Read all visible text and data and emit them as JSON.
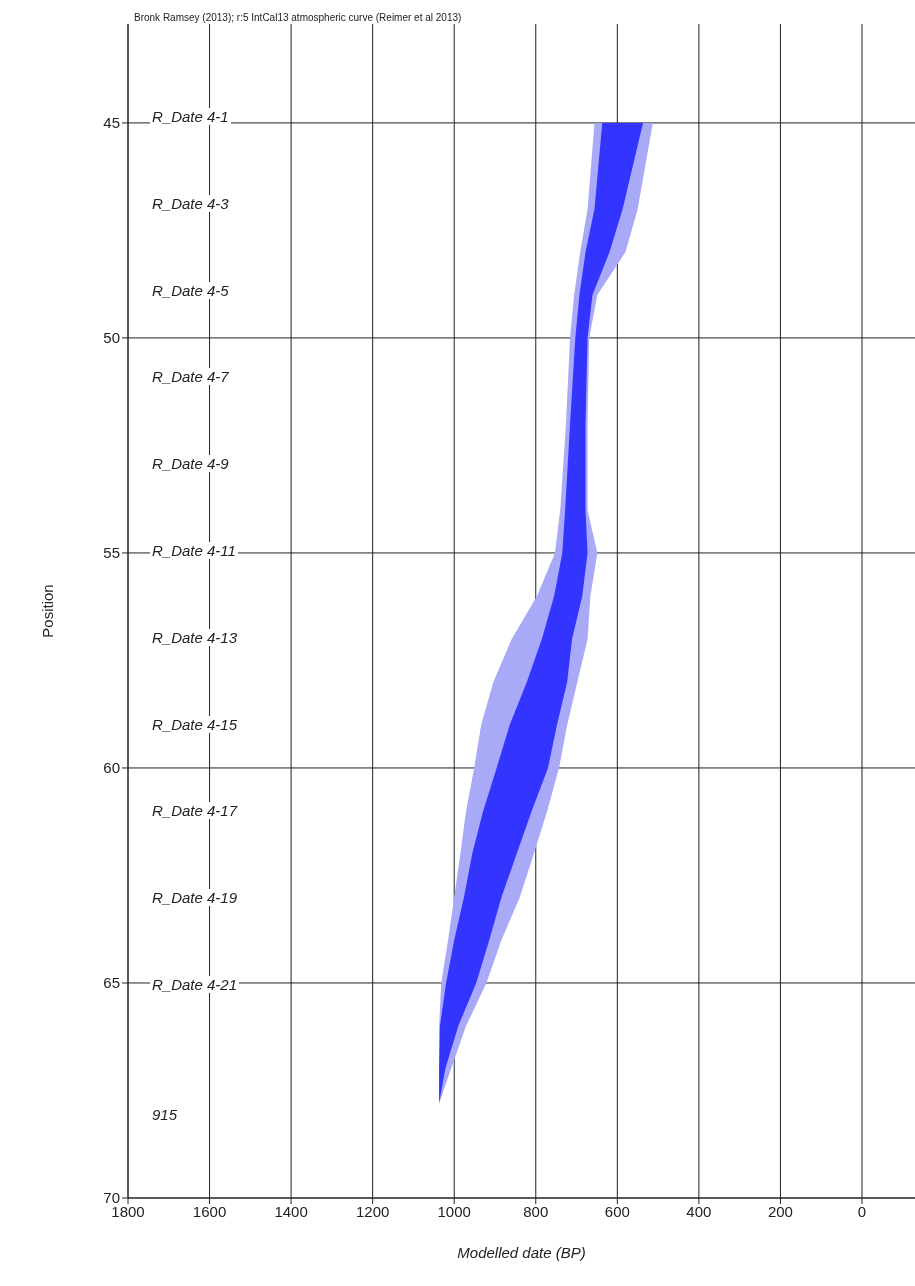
{
  "chart_data": {
    "type": "area",
    "orientation": "horizontal",
    "title": "Bronk Ramsey (2013); r:5 IntCal13 atmospheric curve (Reimer et al 2013)",
    "xlabel": "Modelled date (BP)",
    "ylabel": "Position",
    "xlim": [
      1800,
      -130
    ],
    "xticks": [
      1800,
      1600,
      1400,
      1200,
      1000,
      800,
      600,
      400,
      200,
      0
    ],
    "ylim": [
      70,
      42.7
    ],
    "yticks": [
      45,
      50,
      55,
      60,
      65,
      70
    ],
    "grid": true,
    "series": [
      {
        "color": "#a8aaf8",
        "x": [
          45,
          47,
          48,
          49,
          50,
          52,
          54,
          55,
          56,
          57,
          58,
          59,
          60,
          61,
          62,
          63,
          64,
          65,
          66,
          67,
          67.8
        ],
        "values": [
          null,
          null,
          null,
          null,
          null,
          null,
          null,
          null,
          null,
          null,
          null,
          null,
          null,
          null,
          null,
          null,
          null,
          null,
          null,
          null,
          null
        ],
        "lower": [
          656,
          673,
          691,
          706,
          716,
          726,
          740,
          753,
          797,
          859,
          904,
          934,
          951,
          971,
          985,
          1000,
          1015,
          1032,
          1037,
          1037,
          1037
        ],
        "upper": [
          513,
          550,
          580,
          649,
          669,
          673,
          673,
          649,
          666,
          673,
          698,
          723,
          743,
          772,
          805,
          839,
          884,
          921,
          971,
          1008,
          1037
        ]
      },
      {
        "color": "#3434ff",
        "x": [
          45,
          47,
          48,
          49,
          50,
          52,
          54,
          55,
          56,
          57,
          58,
          59,
          60,
          61,
          62,
          63,
          64,
          65,
          66,
          67,
          67.8
        ],
        "values": [
          null,
          null,
          null,
          null,
          null,
          null,
          null,
          null,
          null,
          null,
          null,
          null,
          null,
          null,
          null,
          null,
          null,
          null,
          null,
          null,
          null
        ],
        "lower": [
          637,
          656,
          678,
          693,
          703,
          716,
          728,
          735,
          755,
          785,
          822,
          864,
          896,
          929,
          956,
          976,
          1000,
          1020,
          1035,
          1037,
          1037
        ],
        "upper": [
          537,
          587,
          619,
          661,
          673,
          678,
          678,
          673,
          686,
          711,
          723,
          748,
          770,
          810,
          847,
          884,
          914,
          946,
          990,
          1022,
          1037
        ]
      }
    ],
    "annotations": [
      "R_Date 4-1",
      "R_Date 4-3",
      "R_Date 4-5",
      "R_Date 4-7",
      "R_Date 4-9",
      "R_Date 4-11",
      "R_Date 4-13",
      "R_Date 4-15",
      "R_Date 4-17",
      "R_Date 4-19",
      "R_Date 4-21",
      "915"
    ]
  }
}
